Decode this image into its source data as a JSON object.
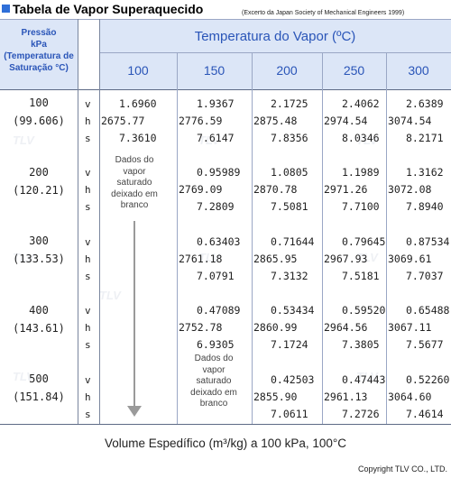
{
  "title": "Tabela de Vapor Superaquecido",
  "source": "(Excerto da Japan Society of Mechanical Engineers 1999)",
  "header": {
    "pressure": [
      "Pressão",
      "kPa",
      "(Temperatura de",
      "Saturação °C)"
    ],
    "temperature_title": "Temperatura do Vapor (ºC)",
    "temperatures": [
      "100",
      "150",
      "200",
      "250",
      "300"
    ]
  },
  "symbols": [
    "v",
    "h",
    "s"
  ],
  "rows": [
    {
      "pressure": "100",
      "sat_temp": "(99.606)",
      "values": [
        [
          "1.6960",
          "1.9367",
          "2.1725",
          "2.4062",
          "2.6389"
        ],
        [
          "2675.77",
          "2776.59",
          "2875.48",
          "2974.54",
          "3074.54"
        ],
        [
          "7.3610",
          "7.6147",
          "7.8356",
          "8.0346",
          "8.2171"
        ]
      ]
    },
    {
      "pressure": "200",
      "sat_temp": "(120.21)",
      "values": [
        [
          "",
          "0.95989",
          "1.0805",
          "1.1989",
          "1.3162"
        ],
        [
          "",
          "2769.09",
          "2870.78",
          "2971.26",
          "3072.08"
        ],
        [
          "",
          "7.2809",
          "7.5081",
          "7.7100",
          "7.8940"
        ]
      ]
    },
    {
      "pressure": "300",
      "sat_temp": "(133.53)",
      "values": [
        [
          "",
          "0.63403",
          "0.71644",
          "0.79645",
          "0.87534"
        ],
        [
          "",
          "2761.18",
          "2865.95",
          "2967.93",
          "3069.61"
        ],
        [
          "",
          "7.0791",
          "7.3132",
          "7.5181",
          "7.7037"
        ]
      ]
    },
    {
      "pressure": "400",
      "sat_temp": "(143.61)",
      "values": [
        [
          "",
          "0.47089",
          "0.53434",
          "0.59520",
          "0.65488"
        ],
        [
          "",
          "2752.78",
          "2860.99",
          "2964.56",
          "3067.11"
        ],
        [
          "",
          "6.9305",
          "7.1724",
          "7.3805",
          "7.5677"
        ]
      ]
    },
    {
      "pressure": "500",
      "sat_temp": "(151.84)",
      "values": [
        [
          "",
          "",
          "0.42503",
          "0.47443",
          "0.52260"
        ],
        [
          "",
          "",
          "2855.90",
          "2961.13",
          "3064.60"
        ],
        [
          "",
          "",
          "7.0611",
          "7.2726",
          "7.4614"
        ]
      ]
    }
  ],
  "blank_note": [
    "Dados do",
    "vapor",
    "saturado",
    "deixado em",
    "branco"
  ],
  "caption": "Volume Espedífico (m³/kg) a 100 kPa, 100°C",
  "copyright": "Copyright TLV CO., LTD.",
  "watermark": "TLV"
}
